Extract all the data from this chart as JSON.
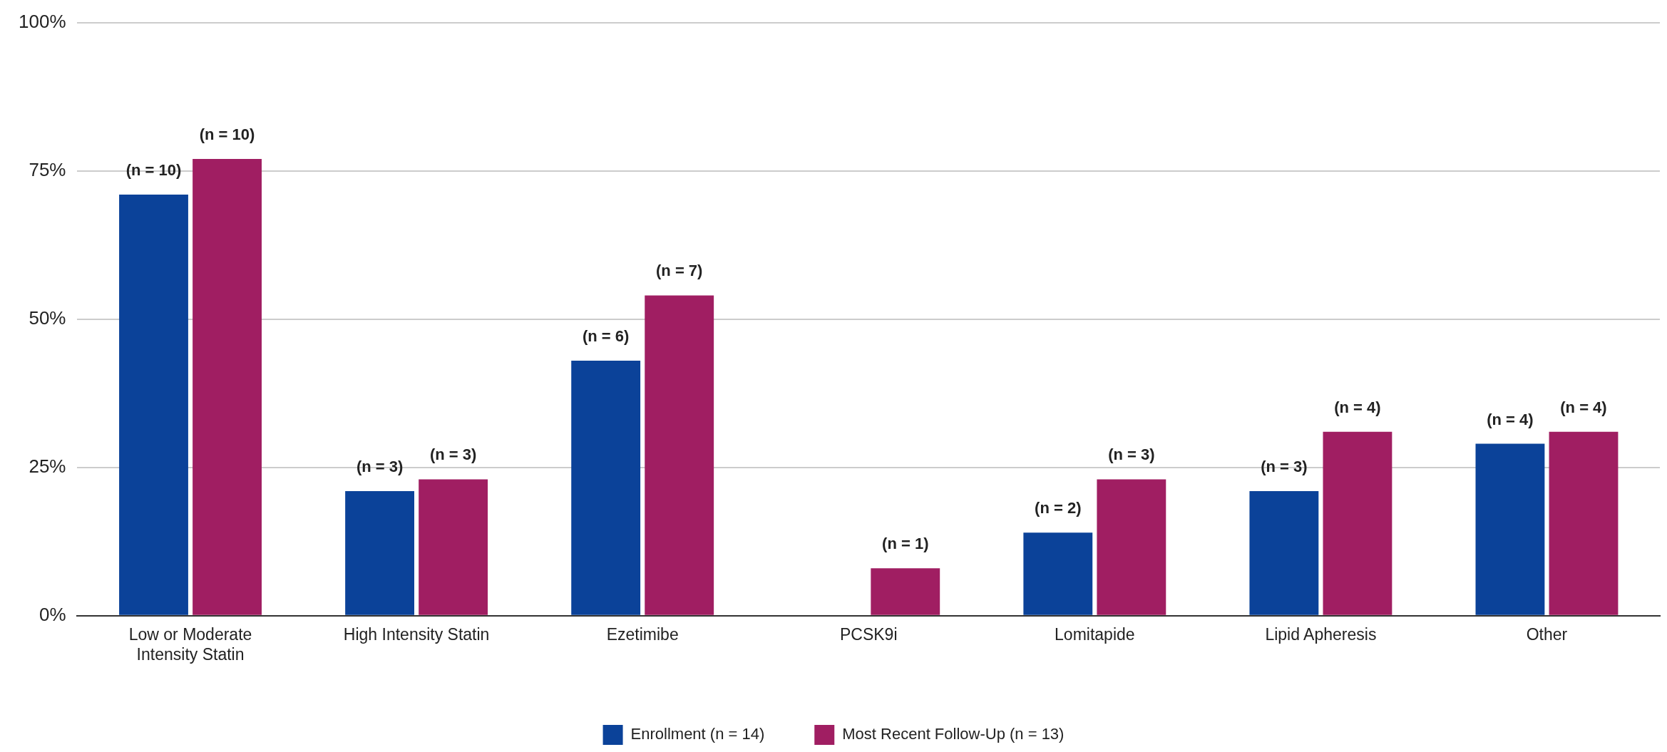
{
  "chart_data": {
    "type": "bar",
    "categories": [
      "Low or Moderate Intensity Statin",
      "High Intensity Statin",
      "Ezetimibe",
      "PCSK9i",
      "Lomitapide",
      "Lipid Apheresis",
      "Other"
    ],
    "series": [
      {
        "name": "Enrollment (n = 14)",
        "color": "#0b4299",
        "values": [
          71,
          21,
          43,
          0,
          14,
          21,
          29
        ]
      },
      {
        "name": "Most Recent Follow-Up (n = 13)",
        "color": "#a01e62",
        "values": [
          77,
          23,
          54,
          8,
          23,
          31,
          31
        ]
      }
    ],
    "annotations": [
      {
        "text": "(n = 10)",
        "x": "Low or Moderate Intensity Statin",
        "y": 71
      },
      {
        "text": "(n = 10)",
        "x": "Low or Moderate Intensity Statin",
        "y": 77
      },
      {
        "text": "(n = 3)",
        "x": "High Intensity Statin",
        "y": 21
      },
      {
        "text": "(n = 3)",
        "x": "High Intensity Statin",
        "y": 23
      },
      {
        "text": "(n = 6)",
        "x": "Ezetimibe",
        "y": 43
      },
      {
        "text": "(n = 7)",
        "x": "Ezetimibe",
        "y": 54
      },
      {
        "text": "(n = 1)",
        "x": "PCSK9i",
        "y": 8
      },
      {
        "text": "(n = 2)",
        "x": "Lomitapide",
        "y": 14
      },
      {
        "text": "(n = 3)",
        "x": "Lomitapide",
        "y": 23
      },
      {
        "text": "(n = 3)",
        "x": "Lipid Apheresis",
        "y": 21
      },
      {
        "text": "(n = 4)",
        "x": "Lipid Apheresis",
        "y": 31
      },
      {
        "text": "(n = 4)",
        "x": "Other",
        "y": 29
      },
      {
        "text": "(n = 4)",
        "x": "Other",
        "y": 31
      }
    ],
    "ylim": [
      0,
      100
    ],
    "yticks": [
      {
        "value": 0,
        "label": "0%"
      },
      {
        "value": 25,
        "label": "25%"
      },
      {
        "value": 50,
        "label": "50%"
      },
      {
        "value": 75,
        "label": "75%"
      },
      {
        "value": 100,
        "label": "100%"
      }
    ],
    "grid": "y",
    "legend": "bottom"
  }
}
